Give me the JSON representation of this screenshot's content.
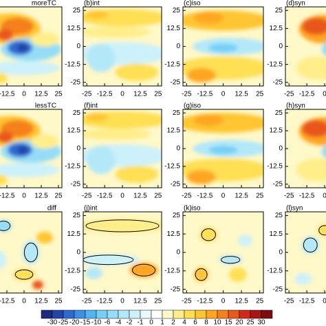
{
  "chart_data": {
    "type": "contour",
    "panels": [
      {
        "title": "moreTC"
      },
      {
        "title": "(b)int"
      },
      {
        "title": "(c)iso"
      },
      {
        "title": "(d)syn"
      },
      {
        "title": "lessTC"
      },
      {
        "title": "(f)int"
      },
      {
        "title": "(g)iso"
      },
      {
        "title": "(h)syn"
      },
      {
        "title": "diff"
      },
      {
        "title": "(j)int"
      },
      {
        "title": "(k)iso"
      },
      {
        "title": "(l)syn"
      }
    ],
    "xlim": [
      -27.5,
      27.5
    ],
    "ylim": [
      -27.5,
      27.5
    ],
    "xticks": [
      -25,
      -12.5,
      0,
      12.5,
      25
    ],
    "yticks": [
      -25,
      -12.5,
      0,
      12.5,
      25
    ],
    "colorbar": {
      "levels": [
        -30,
        -25,
        -20,
        -15,
        -10,
        -6,
        -4,
        -2,
        -1,
        0,
        1,
        2,
        4,
        6,
        8,
        10,
        15,
        20,
        25,
        30
      ],
      "colors": [
        "#1c2b7f",
        "#2346a8",
        "#2e6ad0",
        "#3c8fe6",
        "#52b4f2",
        "#75cff7",
        "#94dcf7",
        "#b3e8f9",
        "#cdf1fa",
        "#e8f9fc",
        "#ffffff",
        "#fff8c8",
        "#ffee8a",
        "#ffdf52",
        "#ffc531",
        "#ffa524",
        "#f5801e",
        "#e9571a",
        "#d12a18",
        "#a81515",
        "#7a0e0e"
      ]
    }
  }
}
